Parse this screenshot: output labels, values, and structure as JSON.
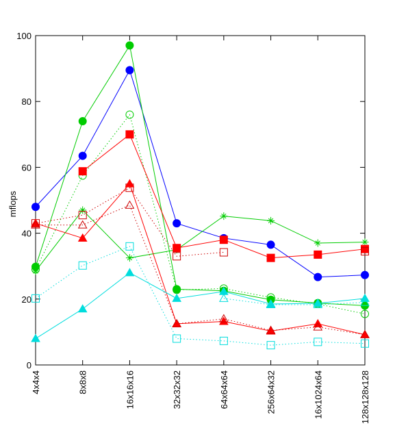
{
  "chart_data": {
    "type": "line",
    "ylabel": "mflops",
    "xlabel": "",
    "ylim": [
      0,
      100
    ],
    "yticks": [
      0,
      20,
      40,
      60,
      80,
      100
    ],
    "categories": [
      "4x4x4",
      "8x8x8",
      "16x16x16",
      "32x32x32",
      "64x64x64",
      "256x64x32",
      "16x1024x64",
      "128x128x128"
    ],
    "grid": false,
    "series": [
      {
        "color": "#0000ff",
        "marker": "circle",
        "filled": true,
        "dash": "solid",
        "values": [
          48,
          63.5,
          89.5,
          43,
          38.5,
          36.5,
          26.7,
          27.3
        ]
      },
      {
        "color": "#00cc00",
        "marker": "circle",
        "filled": true,
        "dash": "solid",
        "values": [
          29.8,
          74,
          97,
          23,
          22.5,
          19.8,
          18.8,
          18
        ]
      },
      {
        "color": "#00cc00",
        "marker": "circle",
        "filled": false,
        "dash": "dotted",
        "values": [
          29,
          57.5,
          76,
          22.8,
          23.2,
          20.5,
          18.5,
          15.5
        ]
      },
      {
        "color": "#00cc00",
        "marker": "star",
        "filled": false,
        "dash": "solid",
        "values": [
          28.5,
          47,
          32.5,
          35,
          45.2,
          43.8,
          37,
          37.3
        ]
      },
      {
        "color": "#ff0000",
        "marker": "square",
        "filled": true,
        "dash": "solid",
        "values": [
          null,
          58.8,
          70,
          35.5,
          38,
          32.5,
          33.5,
          35.2
        ]
      },
      {
        "color": "#cc0000",
        "marker": "square",
        "filled": false,
        "dash": "dotted",
        "values": [
          43,
          45.5,
          53.8,
          33,
          34.2,
          null,
          null,
          34.5
        ]
      },
      {
        "color": "#ff0000",
        "marker": "triangle",
        "filled": true,
        "dash": "solid",
        "values": [
          43,
          38.5,
          55,
          12.5,
          13.2,
          10.3,
          12.5,
          9.2
        ]
      },
      {
        "color": "#cc0000",
        "marker": "triangle",
        "filled": false,
        "dash": "dotted",
        "values": [
          42.5,
          42.5,
          48.5,
          12.5,
          14,
          10.5,
          11.5,
          9.2
        ]
      },
      {
        "color": "#00dddd",
        "marker": "triangle",
        "filled": true,
        "dash": "solid",
        "values": [
          8,
          17,
          28,
          20.2,
          22.3,
          18.5,
          18.7,
          20.2
        ]
      },
      {
        "color": "#00dddd",
        "marker": "triangle",
        "filled": false,
        "dash": "dotted",
        "values": [
          null,
          null,
          null,
          null,
          20.2,
          18.3,
          18.3,
          19
        ]
      },
      {
        "color": "#00dddd",
        "marker": "square",
        "filled": false,
        "dash": "dotted",
        "values": [
          20.2,
          30.2,
          36,
          8,
          7.3,
          6,
          7,
          6.5
        ]
      }
    ]
  }
}
